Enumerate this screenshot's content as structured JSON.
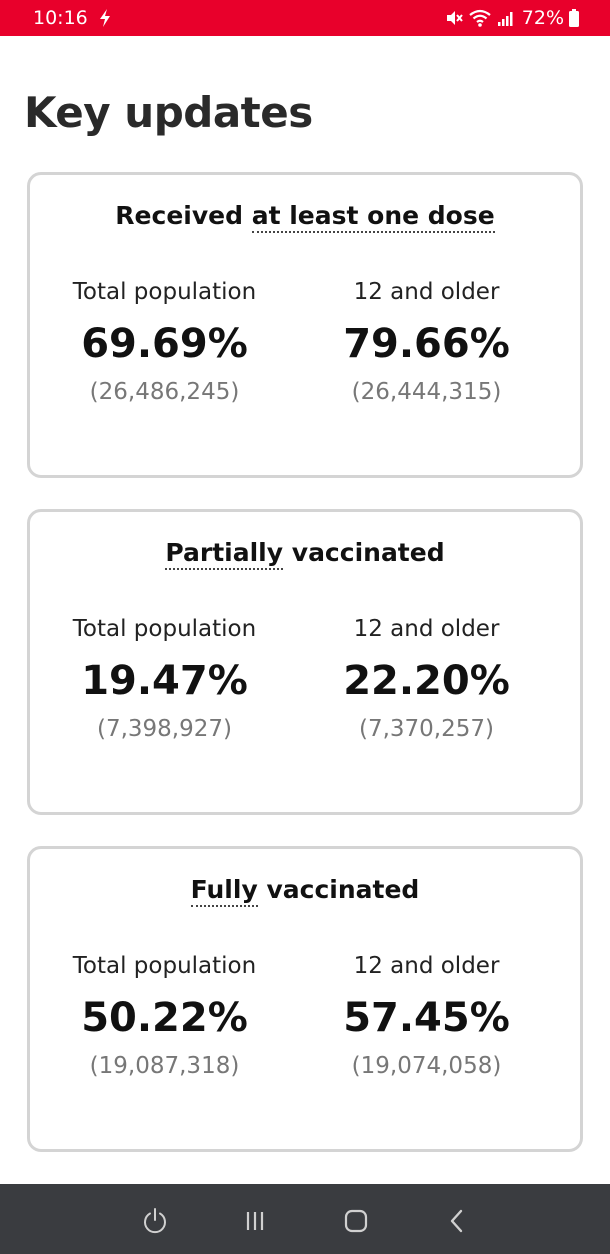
{
  "status_bar": {
    "time": "10:16",
    "battery": "72%",
    "color": "#e8002b",
    "icons": [
      "flash-icon",
      "mute-icon",
      "wifi-icon",
      "signal-icon",
      "battery-icon"
    ]
  },
  "page": {
    "title": "Key updates"
  },
  "cards": [
    {
      "title_plain": "Received ",
      "title_term": "at least one dose",
      "title_rest": "",
      "columns": [
        {
          "label": "Total population",
          "percent": "69.69%",
          "count": "(26,486,245)"
        },
        {
          "label": "12 and older",
          "percent": "79.66%",
          "count": "(26,444,315)"
        }
      ]
    },
    {
      "title_plain": "",
      "title_term": "Partially",
      "title_rest": " vaccinated",
      "columns": [
        {
          "label": "Total population",
          "percent": "19.47%",
          "count": "(7,398,927)"
        },
        {
          "label": "12 and older",
          "percent": "22.20%",
          "count": "(7,370,257)"
        }
      ]
    },
    {
      "title_plain": "",
      "title_term": "Fully",
      "title_rest": " vaccinated",
      "columns": [
        {
          "label": "Total population",
          "percent": "50.22%",
          "count": "(19,087,318)"
        },
        {
          "label": "12 and older",
          "percent": "57.45%",
          "count": "(19,074,058)"
        }
      ]
    }
  ],
  "nav_bar": {
    "buttons": [
      "power-icon",
      "recent-apps-icon",
      "home-icon",
      "back-icon"
    ]
  }
}
